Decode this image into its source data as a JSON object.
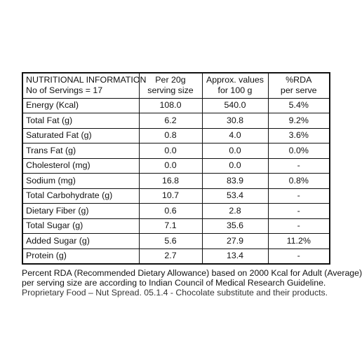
{
  "table": {
    "header": {
      "col1_line1": "NUTRITIONAL INFORMATION",
      "col1_line2": "No of Servings = 17",
      "col2_line1": "Per 20g",
      "col2_line2": "serving size",
      "col3_line1": "Approx. values",
      "col3_line2": "for 100 g",
      "col4_line1": "%RDA",
      "col4_line2": "per serve"
    },
    "rows": [
      {
        "nutrient": "Energy (Kcal)",
        "per_serving": "108.0",
        "per_100g": "540.0",
        "rda": "5.4%"
      },
      {
        "nutrient": "Total Fat (g)",
        "per_serving": "6.2",
        "per_100g": "30.8",
        "rda": "9.2%"
      },
      {
        "nutrient": "Saturated Fat (g)",
        "per_serving": "0.8",
        "per_100g": "4.0",
        "rda": "3.6%"
      },
      {
        "nutrient": "Trans Fat (g)",
        "per_serving": "0.0",
        "per_100g": "0.0",
        "rda": "0.0%"
      },
      {
        "nutrient": "Cholesterol (mg)",
        "per_serving": "0.0",
        "per_100g": "0.0",
        "rda": "-"
      },
      {
        "nutrient": "Sodium (mg)",
        "per_serving": "16.8",
        "per_100g": "83.9",
        "rda": "0.8%"
      },
      {
        "nutrient": "Total Carbohydrate (g)",
        "per_serving": "10.7",
        "per_100g": "53.4",
        "rda": "-"
      },
      {
        "nutrient": "Dietary Fiber (g)",
        "per_serving": "0.6",
        "per_100g": "2.8",
        "rda": "-"
      },
      {
        "nutrient": "Total Sugar (g)",
        "per_serving": "7.1",
        "per_100g": "35.6",
        "rda": "-"
      },
      {
        "nutrient": "Added Sugar (g)",
        "per_serving": "5.6",
        "per_100g": "27.9",
        "rda": "11.2%"
      },
      {
        "nutrient": "Protein (g)",
        "per_serving": "2.7",
        "per_100g": "13.4",
        "rda": "-"
      }
    ]
  },
  "notes": {
    "rda_line1": "Percent RDA (Recommended Dietary Allowance) based on 2000 Kcal for Adult (Average)",
    "rda_line2": "per serving size are according to Indian Council of Medical Research Guideline.",
    "category_line": "Proprietary Food – Nut Spread. 05.1.4 - Chocolate substitute and their products."
  }
}
